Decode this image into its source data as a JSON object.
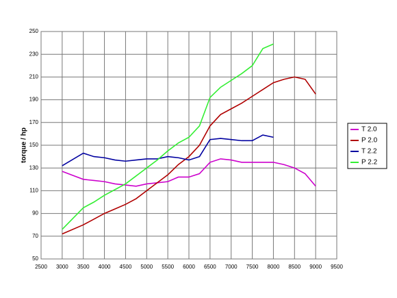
{
  "chart_data": {
    "type": "line",
    "y_label": "torque / hp",
    "x": [
      3000,
      3500,
      3750,
      4000,
      4250,
      4500,
      4750,
      5000,
      5250,
      5500,
      5750,
      6000,
      6250,
      6500,
      6750,
      7000,
      7250,
      7500,
      7750,
      8000,
      8250,
      8500,
      8750,
      9000
    ],
    "series": [
      {
        "name": "T 2.0",
        "color": "#cc00cc",
        "values": [
          127,
          120,
          119,
          118,
          116,
          115,
          114,
          116,
          117,
          118,
          122,
          122,
          125,
          135,
          138,
          137,
          135,
          135,
          135,
          135,
          133,
          130,
          125,
          114
        ]
      },
      {
        "name": "P 2.0",
        "color": "#b00000",
        "values": [
          72,
          80,
          85,
          90,
          94,
          98,
          103,
          110,
          117,
          124,
          133,
          140,
          150,
          167,
          177,
          182,
          187,
          193,
          199,
          205,
          208,
          210,
          208,
          195
        ]
      },
      {
        "name": "T 2.2",
        "color": "#0000a0",
        "values": [
          132,
          143,
          140,
          139,
          137,
          136,
          137,
          138,
          138,
          140,
          139,
          137,
          140,
          155,
          156,
          155,
          154,
          154,
          159,
          157,
          null,
          null,
          null,
          null
        ]
      },
      {
        "name": "P 2.2",
        "color": "#33ee33",
        "values": [
          76,
          95,
          100,
          106,
          111,
          116,
          123,
          130,
          137,
          145,
          152,
          157,
          167,
          192,
          201,
          207,
          213,
          220,
          235,
          239,
          null,
          null,
          null,
          null
        ]
      }
    ],
    "xlim": [
      2500,
      9500
    ],
    "xticks": [
      2500,
      3000,
      3500,
      4000,
      4500,
      5000,
      5500,
      6000,
      6500,
      7000,
      7500,
      8000,
      8500,
      9000,
      9500
    ],
    "ylim": [
      50,
      250
    ],
    "yticks": [
      50,
      70,
      90,
      110,
      130,
      150,
      170,
      190,
      210,
      230,
      250
    ],
    "grid": true,
    "legend": "right"
  }
}
